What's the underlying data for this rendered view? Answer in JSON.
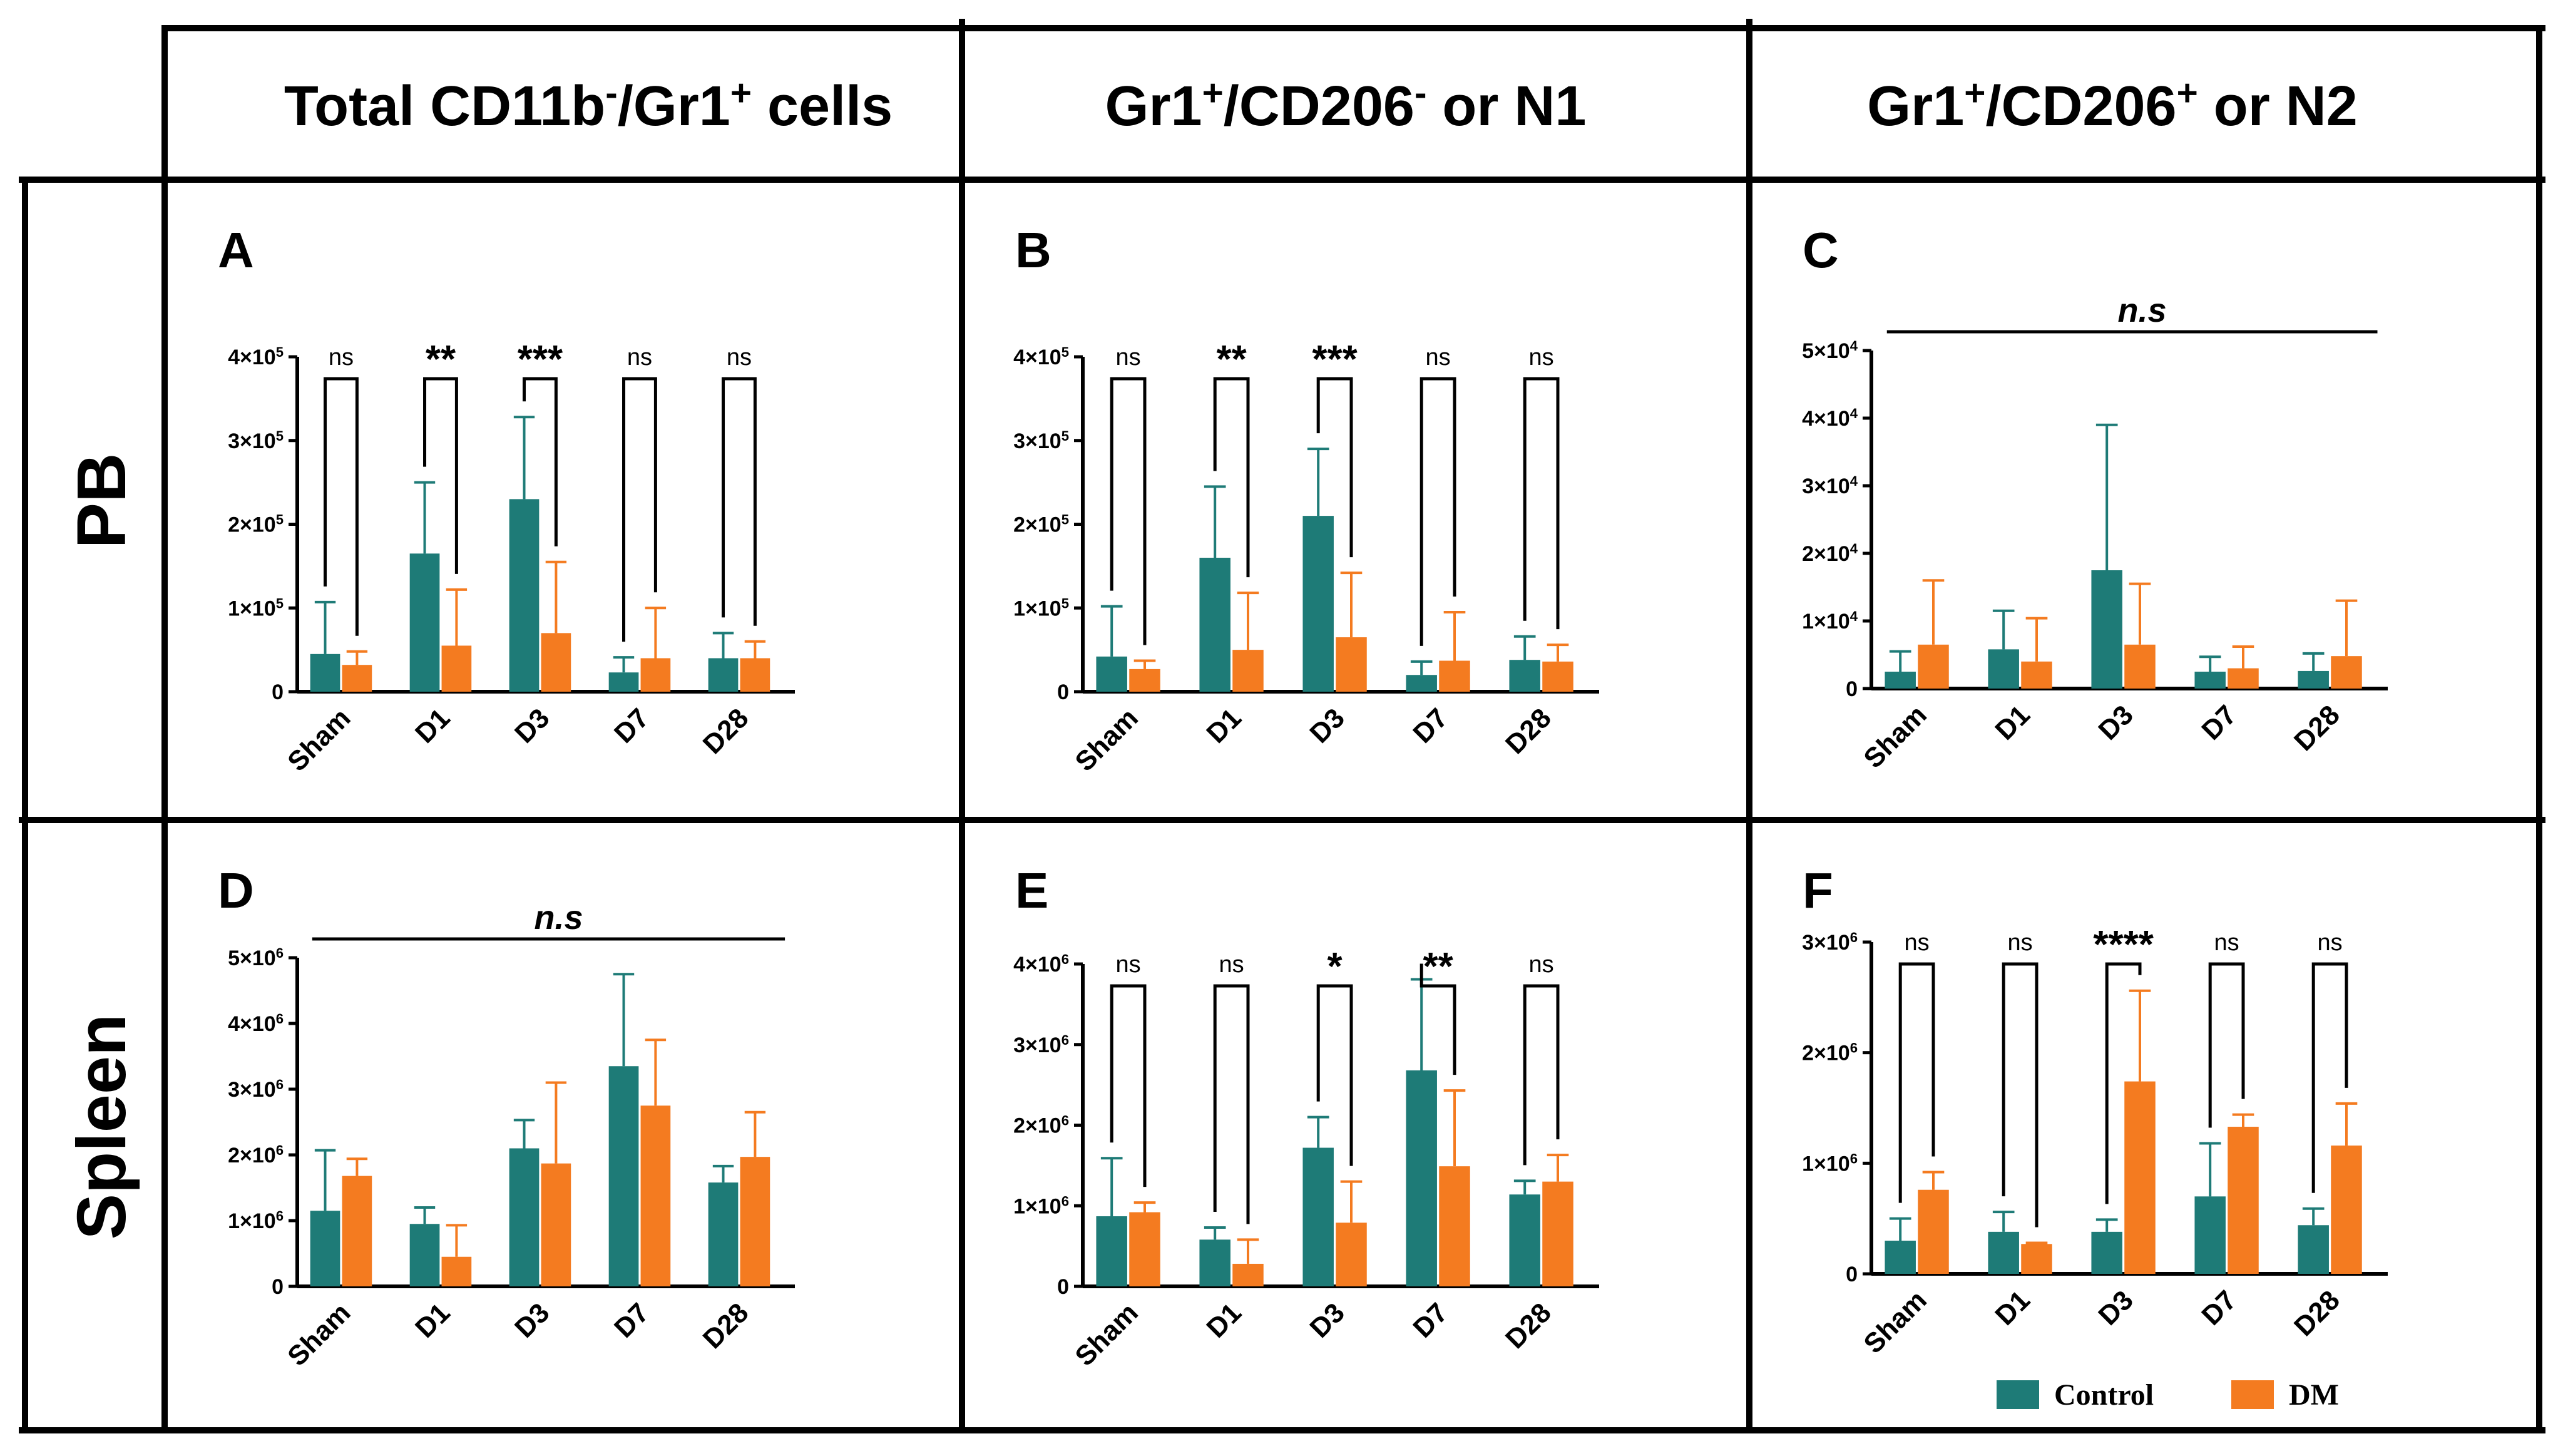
{
  "colors": {
    "control": "#1e7b77",
    "dm": "#f47b20",
    "grid": "#000000",
    "background": "#ffffff"
  },
  "columns": [
    {
      "parts": [
        {
          "t": "Total CD11b"
        },
        {
          "t": "-",
          "s": "sup"
        },
        {
          "t": "/Gr1"
        },
        {
          "t": "+",
          "s": "sup"
        },
        {
          "t": " cells"
        }
      ]
    },
    {
      "parts": [
        {
          "t": "Gr1"
        },
        {
          "t": "+",
          "s": "sup"
        },
        {
          "t": "/CD206"
        },
        {
          "t": "-",
          "s": "sup"
        },
        {
          "t": " or N1"
        }
      ]
    },
    {
      "parts": [
        {
          "t": "Gr1"
        },
        {
          "t": "+",
          "s": "sup"
        },
        {
          "t": "/CD206"
        },
        {
          "t": "+",
          "s": "sup"
        },
        {
          "t": " or N2"
        }
      ]
    }
  ],
  "rows": [
    "PB",
    "Spleen"
  ],
  "legend": {
    "control": "Control",
    "dm": "DM"
  },
  "chart_data": [
    {
      "panel": "A",
      "type": "bar",
      "row": 0,
      "col": 0,
      "categories": [
        "Sham",
        "D1",
        "D3",
        "D7",
        "D28"
      ],
      "ylim": [
        0,
        400000
      ],
      "yticks": [
        {
          "v": 0,
          "base": "0",
          "exp": ""
        },
        {
          "v": 100000,
          "base": "1×10",
          "exp": "5"
        },
        {
          "v": 200000,
          "base": "2×10",
          "exp": "5"
        },
        {
          "v": 300000,
          "base": "3×10",
          "exp": "5"
        },
        {
          "v": 400000,
          "base": "4×10",
          "exp": "5"
        }
      ],
      "series": [
        {
          "name": "Control",
          "values": [
            45000,
            165000,
            230000,
            23000,
            40000
          ],
          "errors": [
            62000,
            85000,
            98000,
            18000,
            30000
          ]
        },
        {
          "name": "DM",
          "values": [
            32000,
            55000,
            70000,
            40000,
            40000
          ],
          "errors": [
            16000,
            67000,
            85000,
            60000,
            20000
          ]
        }
      ],
      "significance": [
        "ns",
        "**",
        "***",
        "ns",
        "ns"
      ],
      "overall": ""
    },
    {
      "panel": "B",
      "type": "bar",
      "row": 0,
      "col": 1,
      "categories": [
        "Sham",
        "D1",
        "D3",
        "D7",
        "D28"
      ],
      "ylim": [
        0,
        400000
      ],
      "yticks": [
        {
          "v": 0,
          "base": "0",
          "exp": ""
        },
        {
          "v": 100000,
          "base": "1×10",
          "exp": "5"
        },
        {
          "v": 200000,
          "base": "2×10",
          "exp": "5"
        },
        {
          "v": 300000,
          "base": "3×10",
          "exp": "5"
        },
        {
          "v": 400000,
          "base": "4×10",
          "exp": "5"
        }
      ],
      "series": [
        {
          "name": "Control",
          "values": [
            42000,
            160000,
            210000,
            20000,
            38000
          ],
          "errors": [
            60000,
            85000,
            80000,
            16000,
            28000
          ]
        },
        {
          "name": "DM",
          "values": [
            27000,
            50000,
            65000,
            37000,
            36000
          ],
          "errors": [
            10000,
            68000,
            77000,
            58000,
            20000
          ]
        }
      ],
      "significance": [
        "ns",
        "**",
        "***",
        "ns",
        "ns"
      ],
      "overall": ""
    },
    {
      "panel": "C",
      "type": "bar",
      "row": 0,
      "col": 2,
      "categories": [
        "Sham",
        "D1",
        "D3",
        "D7",
        "D28"
      ],
      "ylim": [
        0,
        50000
      ],
      "yticks": [
        {
          "v": 0,
          "base": "0",
          "exp": ""
        },
        {
          "v": 10000,
          "base": "1×10",
          "exp": "4"
        },
        {
          "v": 20000,
          "base": "2×10",
          "exp": "4"
        },
        {
          "v": 30000,
          "base": "3×10",
          "exp": "4"
        },
        {
          "v": 40000,
          "base": "4×10",
          "exp": "4"
        },
        {
          "v": 50000,
          "base": "5×10",
          "exp": "4"
        }
      ],
      "series": [
        {
          "name": "Control",
          "values": [
            2500,
            5800,
            17500,
            2500,
            2600
          ],
          "errors": [
            3000,
            5700,
            21500,
            2200,
            2600
          ]
        },
        {
          "name": "DM",
          "values": [
            6500,
            4000,
            6500,
            3000,
            4800
          ],
          "errors": [
            9500,
            6400,
            9000,
            3200,
            8200
          ]
        }
      ],
      "significance": [],
      "overall": "n.s"
    },
    {
      "panel": "D",
      "type": "bar",
      "row": 1,
      "col": 0,
      "categories": [
        "Sham",
        "D1",
        "D3",
        "D7",
        "D28"
      ],
      "ylim": [
        0,
        5000000
      ],
      "yticks": [
        {
          "v": 0,
          "base": "0",
          "exp": ""
        },
        {
          "v": 1000000,
          "base": "1×10",
          "exp": "6"
        },
        {
          "v": 2000000,
          "base": "2×10",
          "exp": "6"
        },
        {
          "v": 3000000,
          "base": "3×10",
          "exp": "6"
        },
        {
          "v": 4000000,
          "base": "4×10",
          "exp": "6"
        },
        {
          "v": 5000000,
          "base": "5×10",
          "exp": "6"
        }
      ],
      "series": [
        {
          "name": "Control",
          "values": [
            1150000,
            950000,
            2100000,
            3350000,
            1580000
          ],
          "errors": [
            920000,
            250000,
            430000,
            1400000,
            250000
          ]
        },
        {
          "name": "DM",
          "values": [
            1680000,
            450000,
            1870000,
            2750000,
            1970000
          ],
          "errors": [
            260000,
            480000,
            1230000,
            1000000,
            680000
          ]
        }
      ],
      "significance": [],
      "overall": "n.s"
    },
    {
      "panel": "E",
      "type": "bar",
      "row": 1,
      "col": 1,
      "categories": [
        "Sham",
        "D1",
        "D3",
        "D7",
        "D28"
      ],
      "ylim": [
        0,
        4000000
      ],
      "yticks": [
        {
          "v": 0,
          "base": "0",
          "exp": ""
        },
        {
          "v": 1000000,
          "base": "1×10",
          "exp": "6"
        },
        {
          "v": 2000000,
          "base": "2×10",
          "exp": "6"
        },
        {
          "v": 3000000,
          "base": "3×10",
          "exp": "6"
        },
        {
          "v": 4000000,
          "base": "4×10",
          "exp": "6"
        }
      ],
      "series": [
        {
          "name": "Control",
          "values": [
            870000,
            580000,
            1720000,
            2680000,
            1140000
          ],
          "errors": [
            720000,
            150000,
            380000,
            1130000,
            170000
          ]
        },
        {
          "name": "DM",
          "values": [
            920000,
            280000,
            790000,
            1490000,
            1300000
          ],
          "errors": [
            120000,
            300000,
            510000,
            940000,
            330000
          ]
        }
      ],
      "significance": [
        "ns",
        "ns",
        "*",
        "**",
        "ns"
      ],
      "overall": ""
    },
    {
      "panel": "F",
      "type": "bar",
      "row": 1,
      "col": 2,
      "categories": [
        "Sham",
        "D1",
        "D3",
        "D7",
        "D28"
      ],
      "ylim": [
        0,
        3000000
      ],
      "yticks": [
        {
          "v": 0,
          "base": "0",
          "exp": ""
        },
        {
          "v": 1000000,
          "base": "1×10",
          "exp": "6"
        },
        {
          "v": 2000000,
          "base": "2×10",
          "exp": "6"
        },
        {
          "v": 3000000,
          "base": "3×10",
          "exp": "6"
        }
      ],
      "series": [
        {
          "name": "Control",
          "values": [
            300000,
            380000,
            380000,
            700000,
            440000
          ],
          "errors": [
            200000,
            180000,
            110000,
            480000,
            150000
          ]
        },
        {
          "name": "DM",
          "values": [
            760000,
            270000,
            1740000,
            1330000,
            1160000
          ],
          "errors": [
            160000,
            10000,
            820000,
            110000,
            380000
          ]
        }
      ],
      "significance": [
        "ns",
        "ns",
        "****",
        "ns",
        "ns"
      ],
      "overall": ""
    }
  ]
}
